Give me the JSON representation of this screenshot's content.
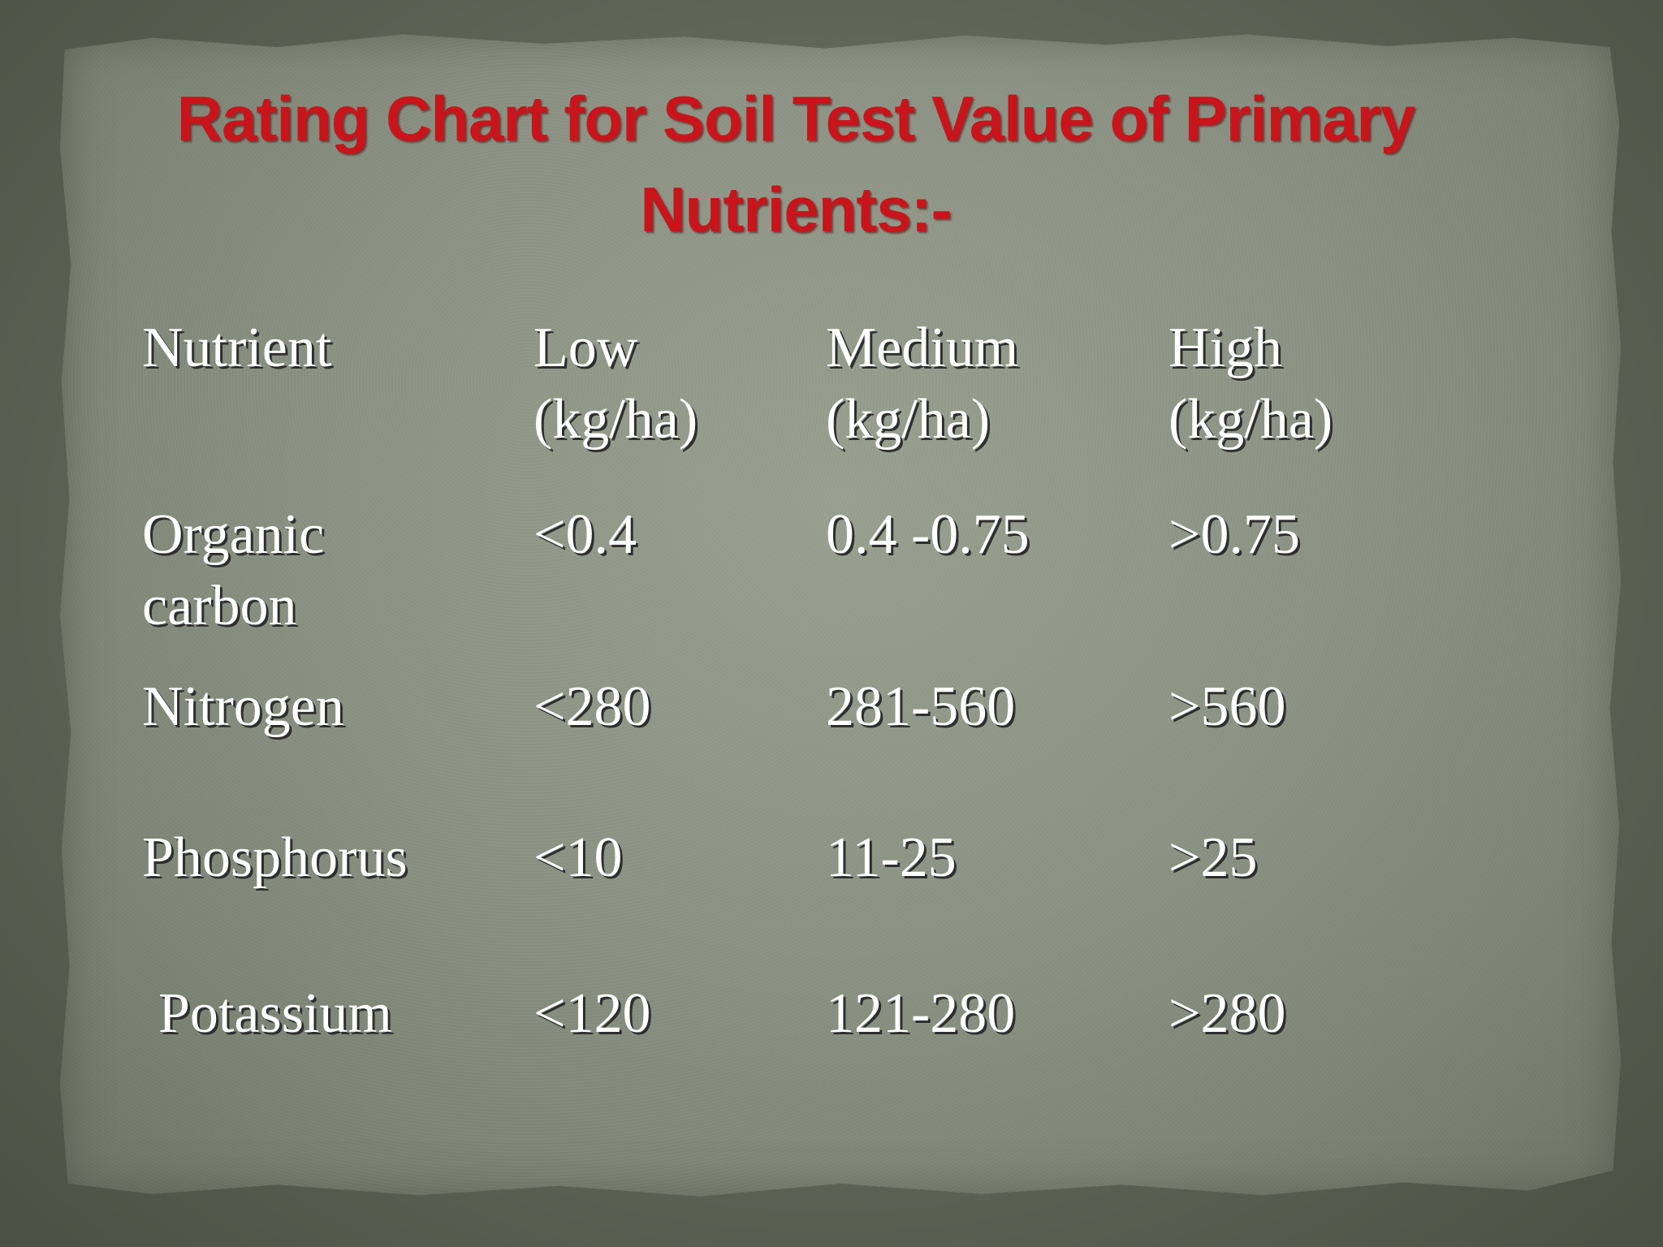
{
  "title": {
    "line1": "Rating Chart for Soil Test Value of Primary",
    "line2": "Nutrients:-"
  },
  "table": {
    "headers": {
      "nutrient": "Nutrient",
      "low_line1": "Low",
      "low_line2": "(kg/ha)",
      "medium_line1": "Medium",
      "medium_line2": "(kg/ha)",
      "high_line1": "High",
      "high_line2": "(kg/ha)"
    },
    "rows": [
      {
        "nutrient_line1": "Organic",
        "nutrient_line2": "carbon",
        "low": "<0.4",
        "medium": "0.4 -0.75",
        "high": ">0.75"
      },
      {
        "nutrient": "Nitrogen",
        "low": "<280",
        "medium": "281-560",
        "high": ">560"
      },
      {
        "nutrient": "Phosphorus",
        "low": "<10",
        "medium": "11-25",
        "high": ">25"
      },
      {
        "nutrient": "Potassium",
        "low": "<120",
        "medium": "121-280",
        "high": ">280"
      }
    ]
  },
  "colors": {
    "title": "#c8141a",
    "text": "#ffffff",
    "paper": "#8d9384",
    "background": "#5f6658"
  }
}
